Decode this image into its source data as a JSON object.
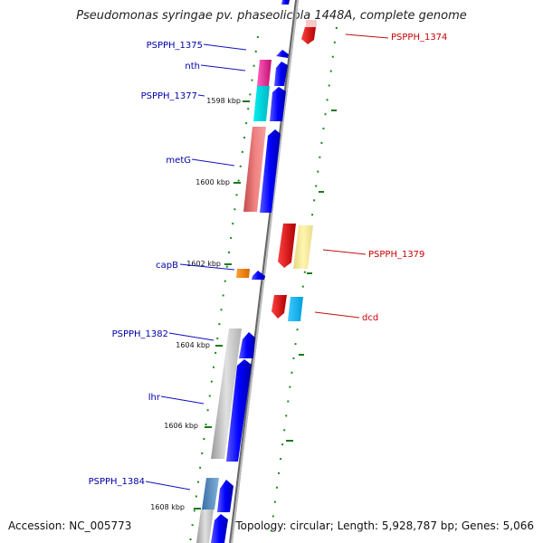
{
  "title": "Pseudomonas syringae pv. phaseolicola 1448A, complete genome",
  "accession": "Accession: NC_005773",
  "topology": "Topology: circular; Length: 5,928,787 bp; Genes: 5,066",
  "ticks": [
    "1598 kbp",
    "1600 kbp",
    "1602 kbp",
    "1604 kbp",
    "1606 kbp",
    "1608 kbp"
  ],
  "genes_left": [
    {
      "label": "PSPPH_1375",
      "color": "#0000aa"
    },
    {
      "label": "nth",
      "color": "#0000aa"
    },
    {
      "label": "PSPPH_1377",
      "color": "#0000aa"
    },
    {
      "label": "metG",
      "color": "#0000aa"
    },
    {
      "label": "capB",
      "color": "#0000aa"
    },
    {
      "label": "PSPPH_1382",
      "color": "#0000aa"
    },
    {
      "label": "lhr",
      "color": "#0000aa"
    },
    {
      "label": "PSPPH_1384",
      "color": "#0000aa"
    }
  ],
  "genes_right": [
    {
      "label": "PSPPH_1374",
      "color": "#cc0000"
    },
    {
      "label": "PSPPH_1379",
      "color": "#cc0000"
    },
    {
      "label": "dcd",
      "color": "#cc0000"
    }
  ]
}
